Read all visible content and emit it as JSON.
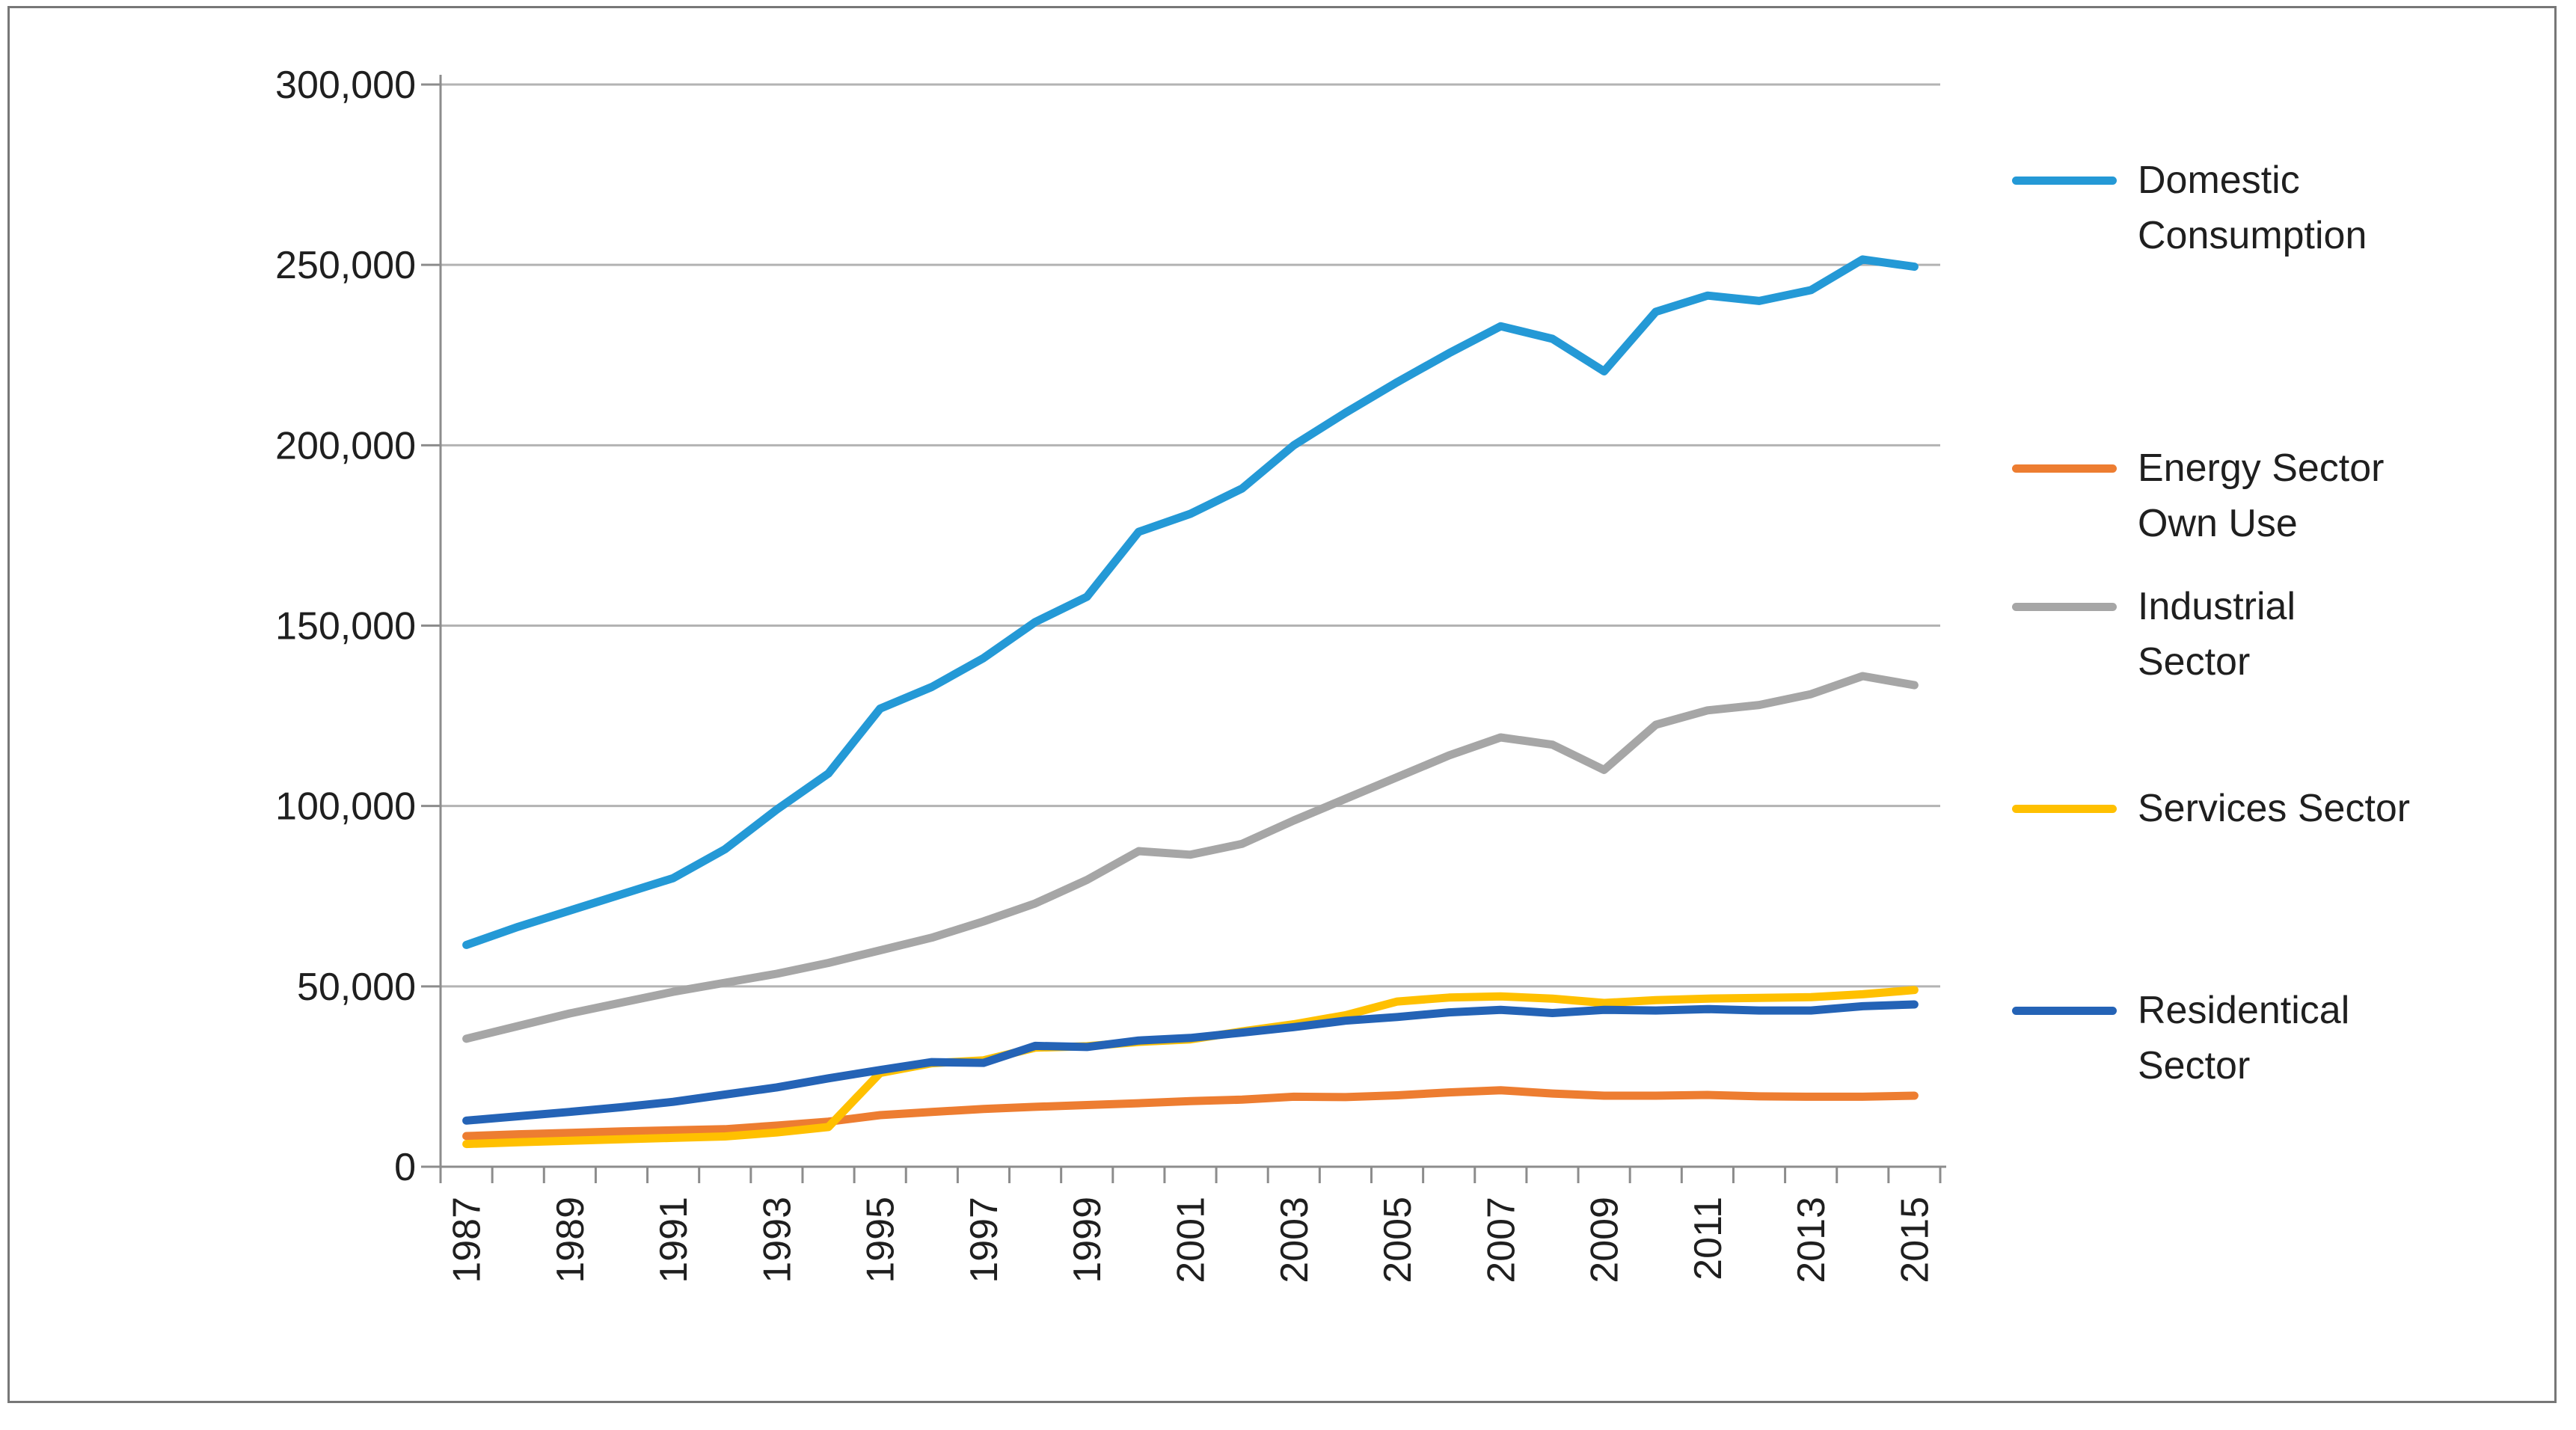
{
  "chart_data": {
    "type": "line",
    "title": "",
    "xlabel": "",
    "ylabel": "",
    "x": [
      1987,
      1988,
      1989,
      1990,
      1991,
      1992,
      1993,
      1994,
      1995,
      1996,
      1997,
      1998,
      1999,
      2000,
      2001,
      2002,
      2003,
      2004,
      2005,
      2006,
      2007,
      2008,
      2009,
      2010,
      2011,
      2012,
      2013,
      2014,
      2015
    ],
    "x_tick_labels": [
      "1987",
      "1989",
      "1991",
      "1993",
      "1995",
      "1997",
      "1999",
      "2001",
      "2003",
      "2005",
      "2007",
      "2009",
      "2011",
      "2013",
      "2015"
    ],
    "ylim": [
      0,
      300000
    ],
    "y_ticks": [
      0,
      50000,
      100000,
      150000,
      200000,
      250000,
      300000
    ],
    "y_tick_labels": [
      "0",
      "50,000",
      "100,000",
      "150,000",
      "200,000",
      "250,000",
      "300,000"
    ],
    "grid": true,
    "legend_position": "right",
    "series": [
      {
        "name": "Domestic Consumption",
        "legend_label": "Domestic\nConsumption",
        "color": "#2499D6",
        "values": [
          61500,
          66500,
          71000,
          75500,
          80000,
          88000,
          99000,
          109000,
          127000,
          133000,
          141000,
          151000,
          158000,
          176000,
          181000,
          188000,
          200000,
          209000,
          217500,
          225500,
          233000,
          229500,
          220500,
          237000,
          241500,
          240000,
          243000,
          251500,
          249500
        ]
      },
      {
        "name": "Energy Sector Own Use",
        "legend_label": " Energy Sector\nOwn Use",
        "color": "#ED7D31",
        "values": [
          8500,
          9000,
          9400,
          9800,
          10100,
          10400,
          11400,
          12500,
          14300,
          15200,
          16000,
          16600,
          17100,
          17600,
          18200,
          18600,
          19400,
          19300,
          19800,
          20600,
          21200,
          20300,
          19700,
          19700,
          19900,
          19500,
          19400,
          19400,
          19700
        ]
      },
      {
        "name": "Industrial Sector",
        "legend_label": " Industrial\nSector",
        "color": "#A6A6A6",
        "values": [
          35500,
          39000,
          42500,
          45500,
          48500,
          51000,
          53500,
          56500,
          60000,
          63500,
          68000,
          73000,
          79500,
          87500,
          86500,
          89500,
          96000,
          102000,
          108000,
          114000,
          119000,
          117000,
          110000,
          122500,
          126500,
          128000,
          131000,
          136000,
          133500
        ]
      },
      {
        "name": "Services Sector",
        "legend_label": "Services Sector",
        "color": "#FFC000",
        "values": [
          6300,
          6800,
          7200,
          7600,
          8000,
          8400,
          9500,
          11000,
          26000,
          28700,
          29500,
          33000,
          33400,
          34600,
          35300,
          37500,
          39500,
          42000,
          45800,
          46900,
          47200,
          46600,
          45400,
          46200,
          46600,
          46800,
          47000,
          47800,
          49000
        ]
      },
      {
        "name": "Residentical Sector",
        "legend_label": " Residentical\nSector",
        "color": "#2463B6",
        "values": [
          12800,
          14000,
          15200,
          16500,
          18000,
          20000,
          22000,
          24500,
          26800,
          29000,
          28800,
          33500,
          33200,
          35000,
          35700,
          37200,
          38700,
          40500,
          41500,
          42800,
          43500,
          42600,
          43500,
          43300,
          43700,
          43300,
          43300,
          44500,
          45000
        ]
      }
    ]
  },
  "legend_item_tops": [
    205,
    590,
    775,
    1045,
    1315
  ],
  "style": {
    "axis_color": "#8C8C8C",
    "grid_color": "#B3B3B3",
    "text_color": "#1f1f1f",
    "line_width": 11
  }
}
